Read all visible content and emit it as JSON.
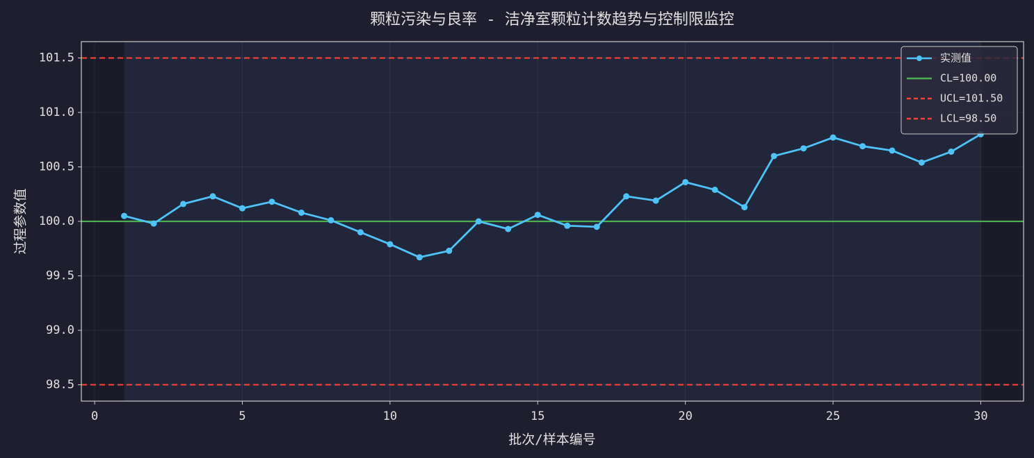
{
  "chart_data": {
    "type": "line",
    "title": "颗粒污染与良率 - 洁净室颗粒计数趋势与控制限监控",
    "x_label": "批次/样本编号",
    "y_label": "过程参数值",
    "x": [
      1,
      2,
      3,
      4,
      5,
      6,
      7,
      8,
      9,
      10,
      11,
      12,
      13,
      14,
      15,
      16,
      17,
      18,
      19,
      20,
      21,
      22,
      23,
      24,
      25,
      26,
      27,
      28,
      29,
      30
    ],
    "series": [
      {
        "name": "实测值",
        "color": "#4fc3f7",
        "values": [
          100.05,
          99.98,
          100.16,
          100.23,
          100.12,
          100.18,
          100.08,
          100.01,
          99.9,
          99.79,
          99.67,
          99.73,
          100.0,
          99.93,
          100.06,
          99.96,
          99.95,
          100.23,
          100.19,
          100.36,
          100.29,
          100.13,
          100.6,
          100.67,
          100.77,
          100.69,
          100.65,
          100.54,
          100.64,
          100.8
        ]
      }
    ],
    "control_lines": [
      {
        "name": "CL=100.00",
        "value": 100,
        "color": "#4caf50",
        "style": "solid"
      },
      {
        "name": "UCL=101.50",
        "value": 101.5,
        "color": "#f44336",
        "style": "dashed"
      },
      {
        "name": "LCL=98.50",
        "value": 98.5,
        "color": "#f44336",
        "style": "dashed"
      }
    ],
    "xlim": [
      -0.45,
      31.45
    ],
    "ylim": [
      98.35,
      101.65
    ],
    "xticks": [
      0,
      5,
      10,
      15,
      20,
      25,
      30
    ],
    "yticks": [
      98.5,
      {
        "value": 99,
        "label": "99.0"
      },
      99.5,
      {
        "value": 100,
        "label": "100.0"
      },
      100.5,
      {
        "value": 101,
        "label": "101.0"
      },
      101.5
    ],
    "grid": true,
    "legend": "upper right"
  }
}
